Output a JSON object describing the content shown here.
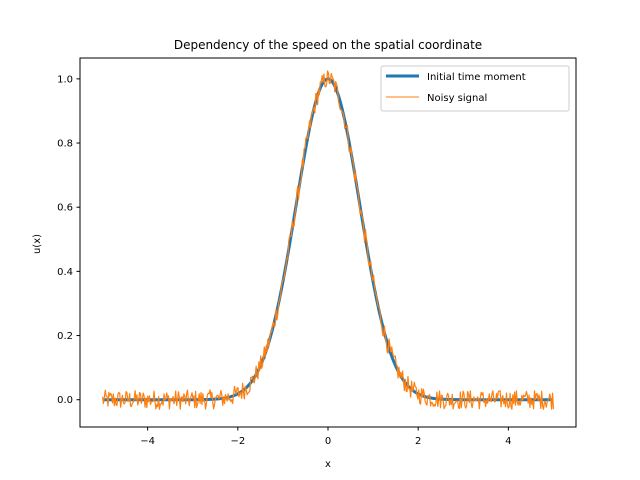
{
  "chart_data": {
    "type": "line",
    "title": "Dependency of the speed on the spatial coordinate",
    "xlabel": "x",
    "ylabel": "u(x)",
    "xlim": [
      -5.5,
      5.5
    ],
    "ylim": [
      -0.085,
      1.065
    ],
    "xticks": [
      -4,
      -2,
      0,
      2,
      4
    ],
    "xtick_labels": [
      "−4",
      "−2",
      "0",
      "2",
      "4"
    ],
    "yticks": [
      0.0,
      0.2,
      0.4,
      0.6,
      0.8,
      1.0
    ],
    "ytick_labels": [
      "0.0",
      "0.2",
      "0.4",
      "0.6",
      "0.8",
      "1.0"
    ],
    "grid": false,
    "legend_position": "upper right",
    "x_range": [
      -5,
      5
    ],
    "series": [
      {
        "name": "Initial time moment",
        "function": "exp(-x^2)",
        "color": "#1f77b4",
        "line_width": "thick"
      },
      {
        "name": "Noisy signal",
        "function": "exp(-x^2) + noise",
        "noise_amplitude": 0.03,
        "color": "#ff7f0e",
        "line_width": "thin"
      }
    ]
  }
}
